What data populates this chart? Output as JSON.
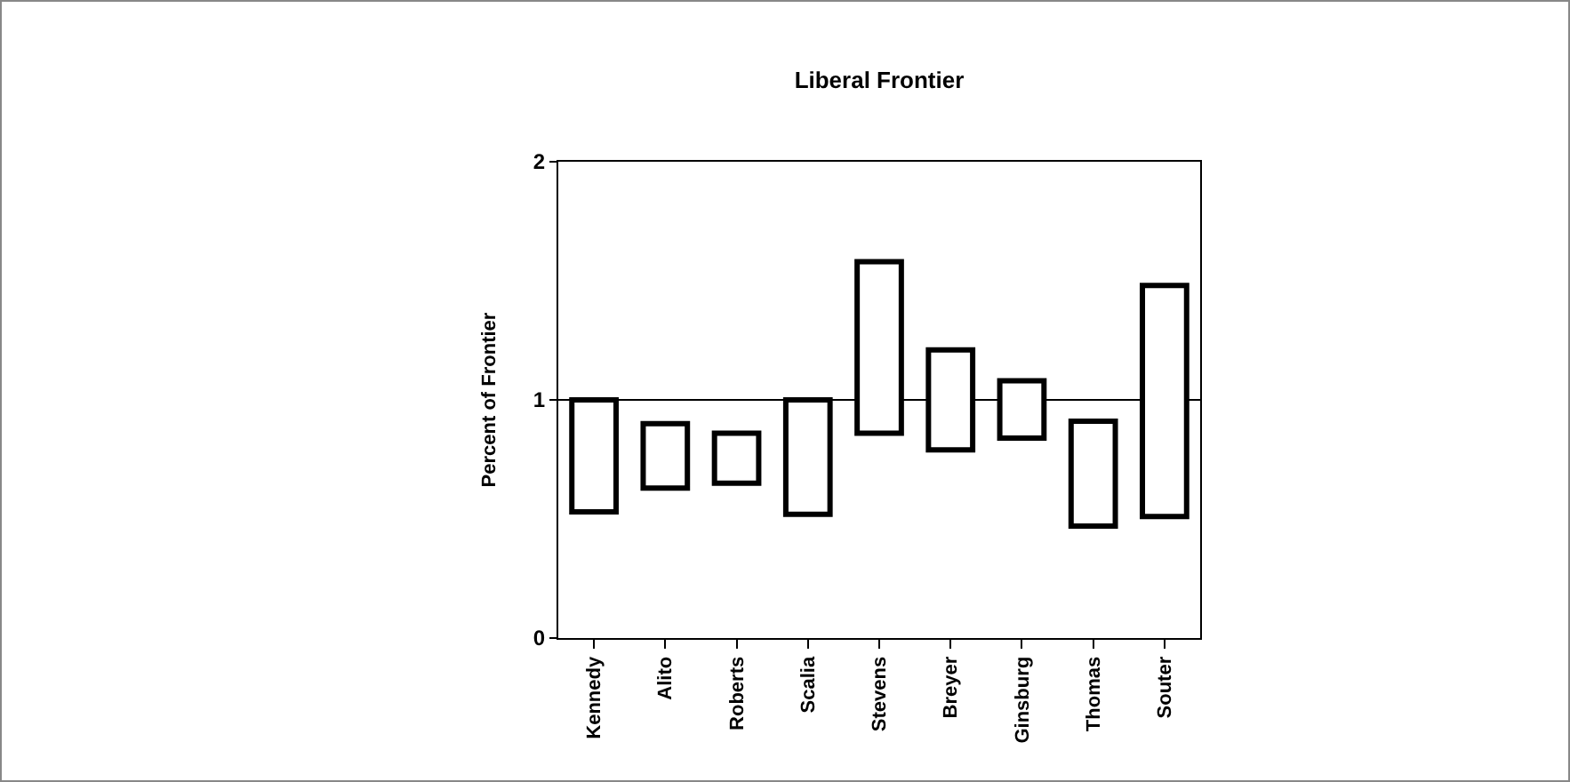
{
  "chart_data": {
    "type": "bar",
    "title": "Liberal Frontier",
    "ylabel": "Percent of Frontier",
    "categories": [
      "Kennedy",
      "Alito",
      "Roberts",
      "Scalia",
      "Stevens",
      "Breyer",
      "Ginsburg",
      "Thomas",
      "Souter"
    ],
    "base": [
      0.53,
      0.63,
      0.65,
      0.52,
      0.86,
      0.79,
      0.84,
      0.47,
      0.51
    ],
    "values": [
      0.47,
      0.27,
      0.21,
      0.48,
      0.72,
      0.42,
      0.24,
      0.44,
      0.97
    ],
    "color": "#ffffff",
    "ylim": [
      0,
      2
    ],
    "yticks": [
      0,
      1,
      2
    ],
    "grid": false,
    "ref_lines": [
      {
        "axis": "y",
        "value": 1,
        "color": "#000000"
      }
    ]
  }
}
